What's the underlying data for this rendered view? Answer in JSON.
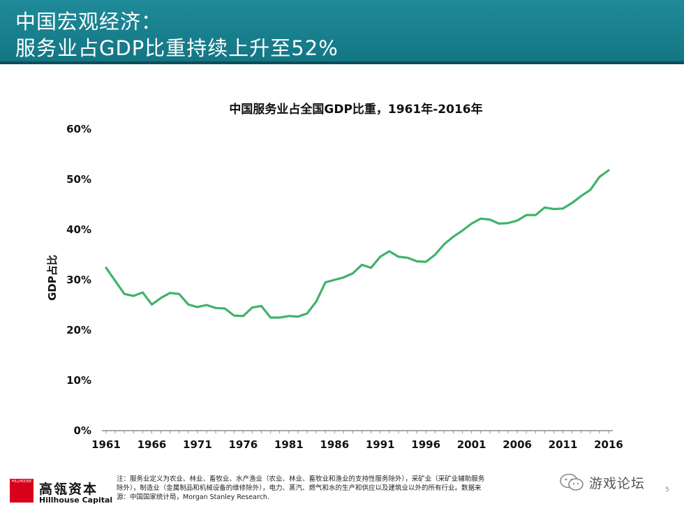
{
  "slide": {
    "title_line1": "中国宏观经济：",
    "title_line2": "服务业占GDP比重持续上升至52%",
    "page_number": "5"
  },
  "colors": {
    "header": "#137684",
    "line": "#3fb36a",
    "logo_red": "#d9001b"
  },
  "chart_data": {
    "type": "line",
    "title": "中国服务业占全国GDP比重，1961年-2016年",
    "xlabel": "",
    "ylabel": "GDP占比",
    "ylim": [
      0,
      60
    ],
    "x_ticks": [
      1961,
      1966,
      1971,
      1976,
      1981,
      1986,
      1991,
      1996,
      2001,
      2006,
      2011,
      2016
    ],
    "y_ticks": [
      "0%",
      "10%",
      "20%",
      "30%",
      "40%",
      "50%",
      "60%"
    ],
    "grid": false,
    "legend": "none",
    "series": [
      {
        "x": [
          1961,
          1962,
          1963,
          1964,
          1965,
          1966,
          1967,
          1968,
          1969,
          1970,
          1971,
          1972,
          1973,
          1974,
          1975,
          1976,
          1977,
          1978,
          1979,
          1980,
          1981,
          1982,
          1983,
          1984,
          1985,
          1986,
          1987,
          1988,
          1989,
          1990,
          1991,
          1992,
          1993,
          1994,
          1995,
          1996,
          1997,
          1998,
          1999,
          2000,
          2001,
          2002,
          2003,
          2004,
          2005,
          2006,
          2007,
          2008,
          2009,
          2010,
          2011,
          2012,
          2013,
          2014,
          2015,
          2016
        ],
        "values": [
          32.4,
          29.8,
          27.2,
          26.8,
          27.5,
          25.1,
          26.4,
          27.4,
          27.2,
          25.1,
          24.6,
          25.0,
          24.4,
          24.3,
          22.9,
          22.8,
          24.5,
          24.8,
          22.5,
          22.5,
          22.8,
          22.7,
          23.3,
          25.7,
          29.5,
          30.0,
          30.5,
          31.3,
          33.0,
          32.4,
          34.6,
          35.7,
          34.6,
          34.4,
          33.7,
          33.6,
          35.0,
          37.1,
          38.6,
          39.8,
          41.2,
          42.2,
          42.0,
          41.2,
          41.3,
          41.8,
          42.9,
          42.9,
          44.4,
          44.1,
          44.2,
          45.3,
          46.7,
          47.9,
          50.5,
          51.8
        ]
      }
    ]
  },
  "footnote": {
    "line1": "注：服务业定义为农业、林业、畜牧业、水产渔业（农业、林业、畜牧业和渔业的支持性服务除外），采矿业（采矿业辅助服务",
    "line2": "除外），制造业（金属制品和机械设备的维修除外），电力、蒸汽、燃气和水的生产和供应以及建筑业以外的所有行业。数据来",
    "line3": "源：中国国家统计局，Morgan Stanley Research."
  },
  "logo": {
    "box_text": "HILLHOUSE",
    "name_cn": "高瓴资本",
    "name_en": "Hillhouse Capital"
  },
  "watermark": {
    "icon": "wechat-icon",
    "text": "游戏论坛"
  }
}
